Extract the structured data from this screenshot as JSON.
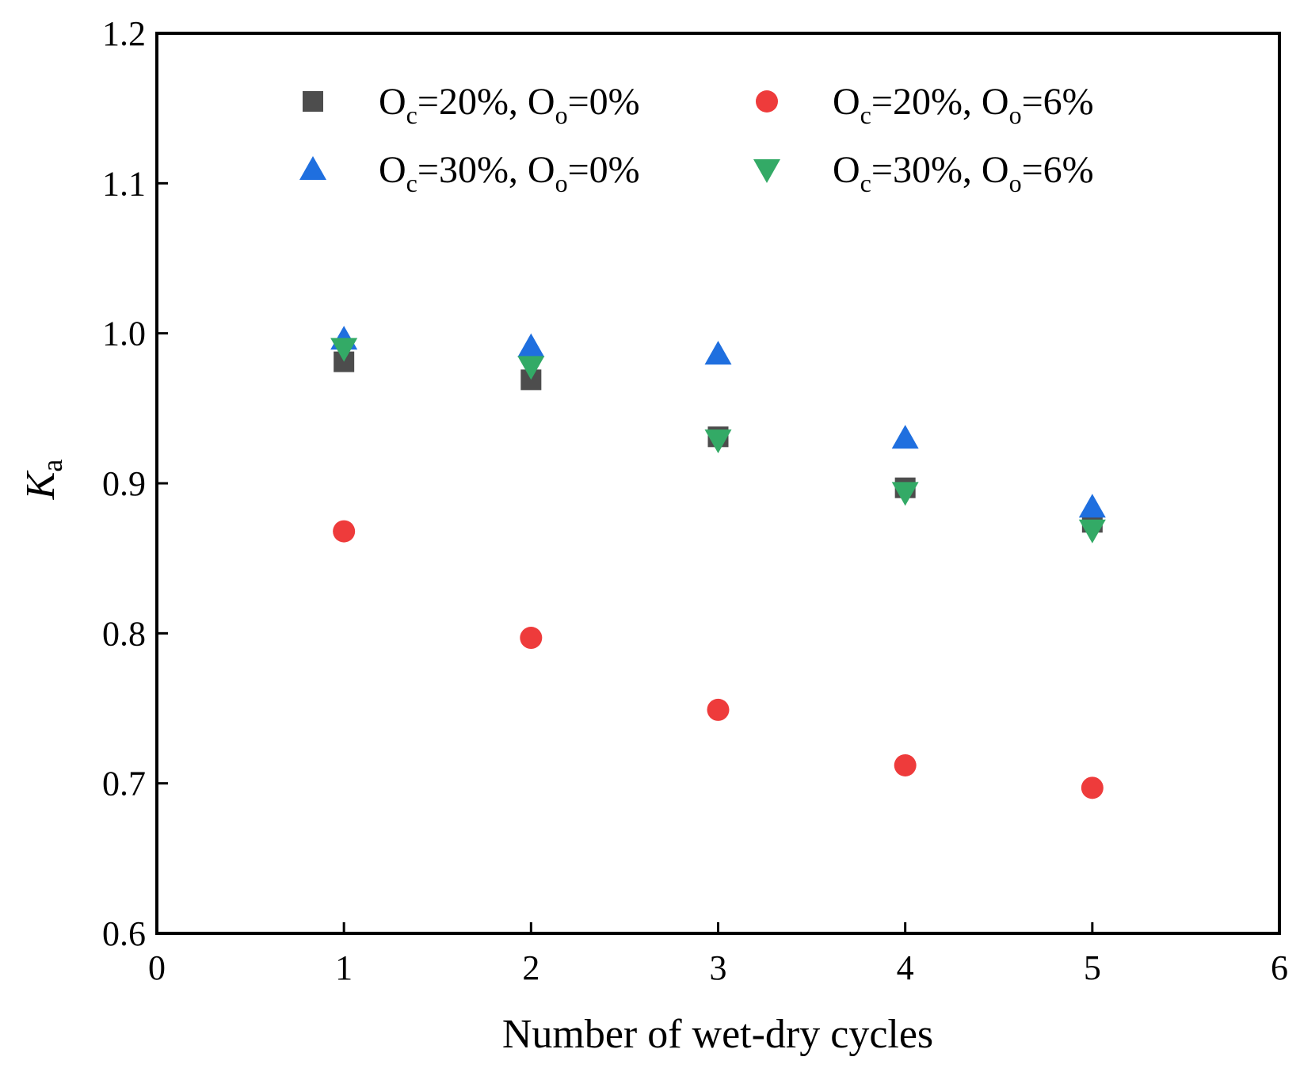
{
  "chart_data": {
    "type": "scatter",
    "title": "",
    "xlabel": "Number of wet-dry cycles",
    "ylabel": {
      "main": "K",
      "sub": "a"
    },
    "xlim": [
      0,
      6
    ],
    "ylim": [
      0.6,
      1.2
    ],
    "xticks": [
      "0",
      "1",
      "2",
      "3",
      "4",
      "5",
      "6"
    ],
    "yticks": [
      "0.6",
      "0.7",
      "0.8",
      "0.9",
      "1.0",
      "1.1",
      "1.2"
    ],
    "legend_position": "top",
    "series": [
      {
        "name": "Oc=20%, Oo=0%",
        "legend": [
          {
            "t": "O",
            "sub": false
          },
          {
            "t": "c",
            "sub": true
          },
          {
            "t": "=20%, O",
            "sub": false
          },
          {
            "t": "o",
            "sub": true
          },
          {
            "t": "=0%",
            "sub": false
          }
        ],
        "marker": "square",
        "color": "#4d4d4d",
        "x": [
          1,
          2,
          3,
          4,
          5
        ],
        "y": [
          0.981,
          0.969,
          0.931,
          0.897,
          0.874
        ]
      },
      {
        "name": "Oc=20%, Oo=6%",
        "legend": [
          {
            "t": "O",
            "sub": false
          },
          {
            "t": "c",
            "sub": true
          },
          {
            "t": "=20%, O",
            "sub": false
          },
          {
            "t": "o",
            "sub": true
          },
          {
            "t": "=6%",
            "sub": false
          }
        ],
        "marker": "circle",
        "color": "#ee3b3b",
        "x": [
          1,
          2,
          3,
          4,
          5
        ],
        "y": [
          0.868,
          0.797,
          0.749,
          0.712,
          0.697
        ]
      },
      {
        "name": "Oc=30%, Oo=0%",
        "legend": [
          {
            "t": "O",
            "sub": false
          },
          {
            "t": "c",
            "sub": true
          },
          {
            "t": "=30%, O",
            "sub": false
          },
          {
            "t": "o",
            "sub": true
          },
          {
            "t": "=0%",
            "sub": false
          }
        ],
        "marker": "triangle-up",
        "color": "#1f6fdf",
        "x": [
          1,
          2,
          3,
          4,
          5
        ],
        "y": [
          0.996,
          0.991,
          0.986,
          0.93,
          0.884
        ]
      },
      {
        "name": "Oc=30%, Oo=6%",
        "legend": [
          {
            "t": "O",
            "sub": false
          },
          {
            "t": "c",
            "sub": true
          },
          {
            "t": "=30%, O",
            "sub": false
          },
          {
            "t": "o",
            "sub": true
          },
          {
            "t": "=6%",
            "sub": false
          }
        ],
        "marker": "triangle-down",
        "color": "#33aa66",
        "x": [
          1,
          2,
          3,
          4,
          5
        ],
        "y": [
          0.99,
          0.978,
          0.929,
          0.894,
          0.869
        ]
      }
    ]
  }
}
